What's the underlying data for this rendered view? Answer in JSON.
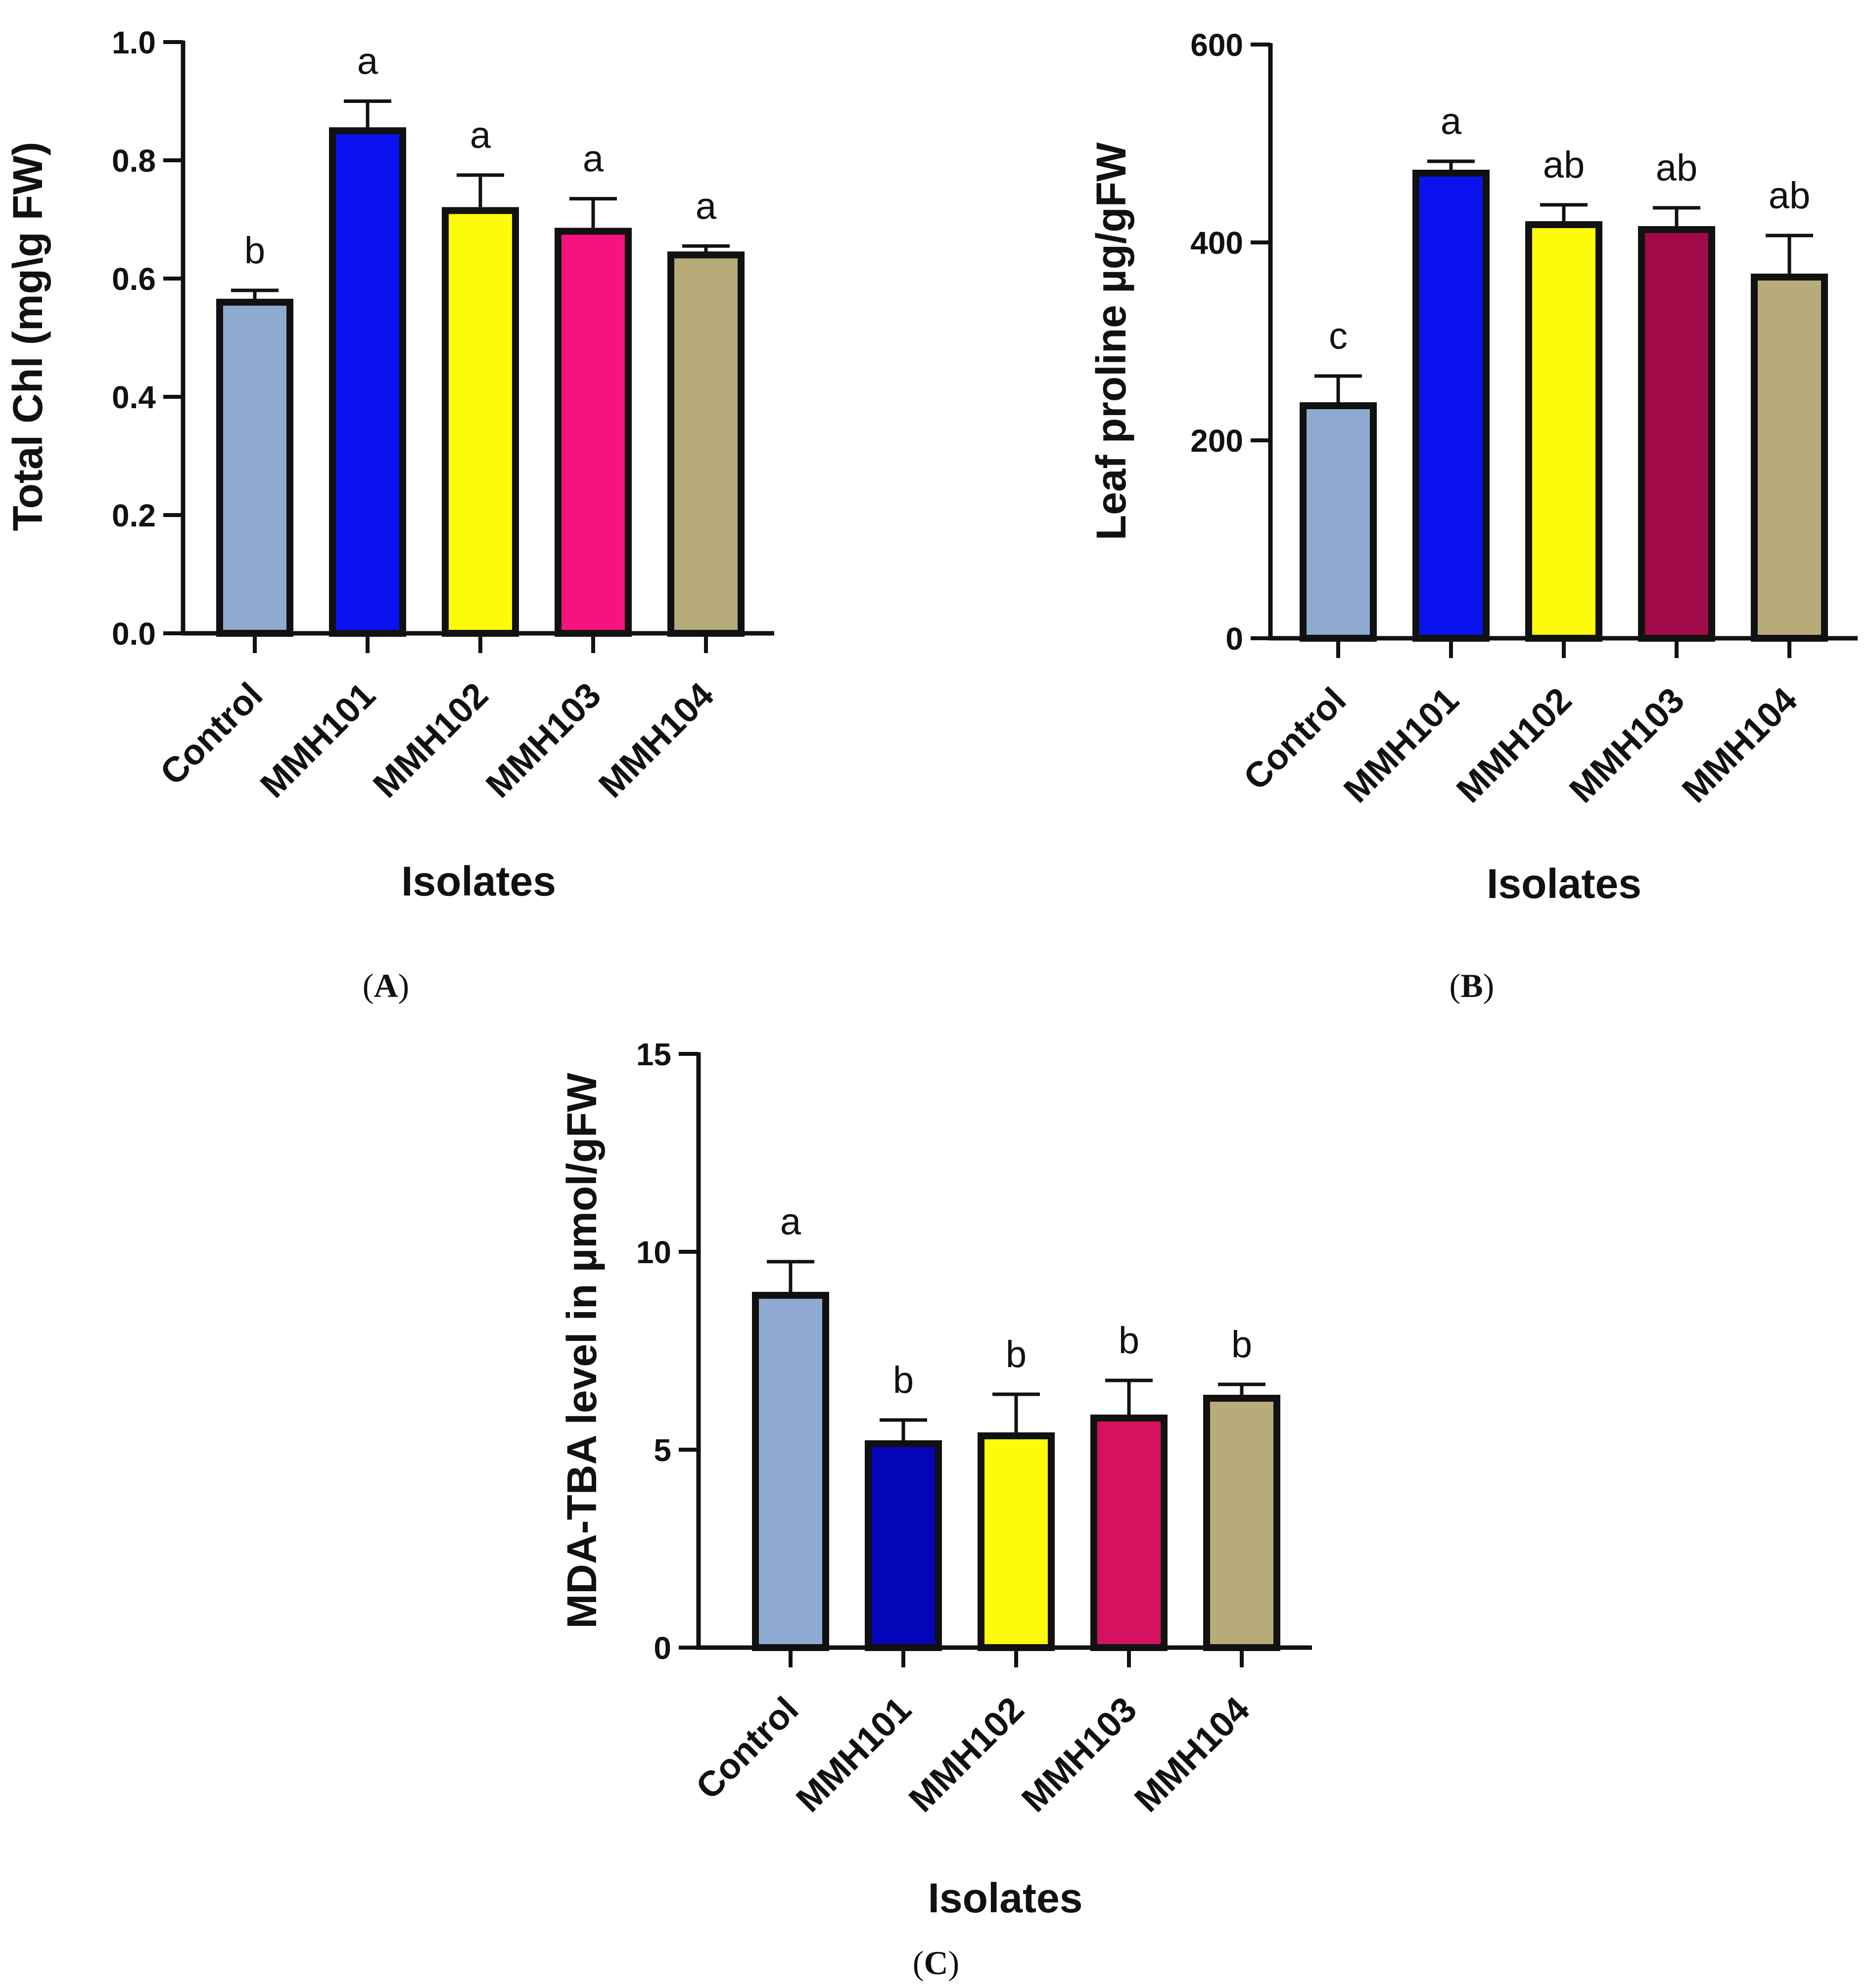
{
  "chart_data": [
    {
      "type": "bar",
      "panel": "A",
      "ylabel": "Total Chl (mg\\g FW)",
      "xlabel": "Isolates",
      "ylim": [
        0,
        1.0
      ],
      "yticks": [
        0.0,
        0.2,
        0.4,
        0.6,
        0.8,
        1.0
      ],
      "ytick_labels": [
        "0.0",
        "0.2",
        "0.4",
        "0.6",
        "0.8",
        "1.0"
      ],
      "categories": [
        "Control",
        "MMH101",
        "MMH102",
        "MMH103",
        "MMH104"
      ],
      "values": [
        0.56,
        0.85,
        0.715,
        0.68,
        0.64
      ],
      "errors": [
        0.02,
        0.05,
        0.06,
        0.055,
        0.015
      ],
      "significance": [
        "b",
        "a",
        "a",
        "a",
        "a"
      ],
      "colors": [
        "#8eaad1",
        "#0a12f0",
        "#fbfb0a",
        "#f7137e",
        "#b8ab7a"
      ]
    },
    {
      "type": "bar",
      "panel": "B",
      "ylabel": "Leaf proline µg/gFW",
      "xlabel": "Isolates",
      "ylim": [
        0,
        600
      ],
      "yticks": [
        0,
        200,
        400,
        600
      ],
      "ytick_labels": [
        "0",
        "200",
        "400",
        "600"
      ],
      "categories": [
        "Control",
        "MMH101",
        "MMH102",
        "MMH103",
        "MMH104"
      ],
      "values": [
        235,
        470,
        418,
        413,
        365
      ],
      "errors": [
        30,
        12,
        20,
        22,
        42
      ],
      "significance": [
        "c",
        "a",
        "ab",
        "ab",
        "ab"
      ],
      "colors": [
        "#8eaad1",
        "#0a12f0",
        "#fbfb0a",
        "#a00a48",
        "#b8ab7a"
      ]
    },
    {
      "type": "bar",
      "panel": "C",
      "ylabel": "MDA-TBA level in µmol/gFW",
      "xlabel": "Isolates",
      "ylim": [
        0,
        15
      ],
      "yticks": [
        0,
        5,
        10,
        15
      ],
      "ytick_labels": [
        "0",
        "5",
        "10",
        "15"
      ],
      "categories": [
        "Control",
        "MMH101",
        "MMH102",
        "MMH103",
        "MMH104"
      ],
      "values": [
        8.9,
        5.15,
        5.35,
        5.8,
        6.3
      ],
      "errors": [
        0.85,
        0.6,
        1.05,
        0.95,
        0.35
      ],
      "significance": [
        "a",
        "b",
        "b",
        "b",
        "b"
      ],
      "colors": [
        "#8eaad1",
        "#0505b8",
        "#fbfb0a",
        "#d4125f",
        "#b8ab7a"
      ]
    }
  ],
  "panel_labels": {
    "a": "A",
    "b": "B",
    "c": "C"
  }
}
